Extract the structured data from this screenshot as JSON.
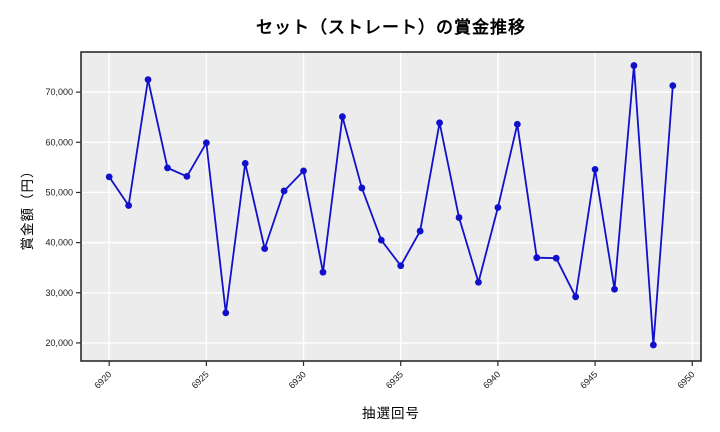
{
  "chart_data": {
    "type": "line",
    "title": "セット（ストレート）の賞金推移",
    "xlabel": "抽選回号",
    "ylabel": "賞金額（円）",
    "x": [
      6920,
      6921,
      6922,
      6923,
      6924,
      6925,
      6926,
      6927,
      6928,
      6929,
      6930,
      6931,
      6932,
      6933,
      6934,
      6935,
      6936,
      6937,
      6938,
      6939,
      6940,
      6941,
      6942,
      6943,
      6944,
      6945,
      6946,
      6947,
      6948,
      6949
    ],
    "values": [
      53100,
      47400,
      72500,
      54900,
      53200,
      59900,
      26000,
      55800,
      38800,
      50300,
      54300,
      34100,
      65100,
      50900,
      40500,
      35400,
      42300,
      63900,
      45000,
      32100,
      47000,
      63600,
      37000,
      36900,
      29200,
      54600,
      30700,
      75300,
      19600,
      71300
    ],
    "x_ticks": [
      6920,
      6925,
      6930,
      6935,
      6940,
      6945,
      6950
    ],
    "y_ticks": [
      20000,
      30000,
      40000,
      50000,
      60000,
      70000
    ],
    "xlim": [
      6918.55,
      6950.45
    ],
    "ylim": [
      16400,
      78000
    ],
    "grid": true,
    "legend": "none",
    "colors": {
      "line": "#1111cc",
      "marker": "#1111cc",
      "plot_background": "#ececec",
      "gridline": "#ffffff",
      "spine": "#2b2b2b",
      "tick_text": "#1a1a1a"
    }
  }
}
